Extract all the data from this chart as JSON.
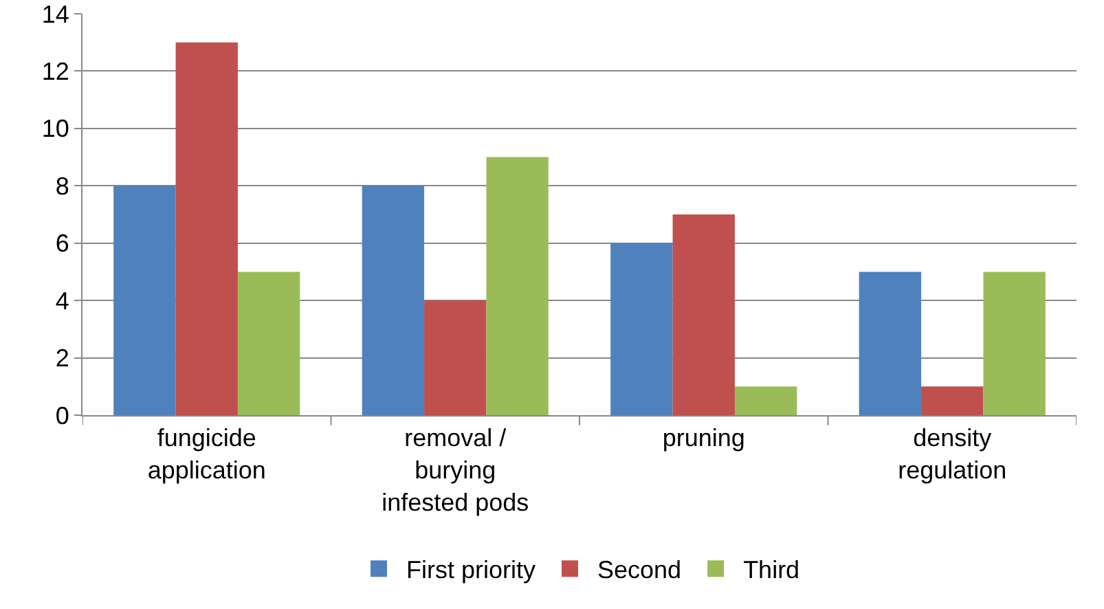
{
  "chart_data": {
    "type": "bar",
    "categories": [
      "fungicide application",
      "removal / burying infested pods",
      "pruning",
      "density regulation"
    ],
    "series": [
      {
        "name": "First priority",
        "color": "#4f81bd",
        "values": [
          8,
          8,
          6,
          5
        ]
      },
      {
        "name": "Second",
        "color": "#c0504d",
        "values": [
          13,
          4,
          7,
          1
        ]
      },
      {
        "name": "Third",
        "color": "#9bbb59",
        "values": [
          5,
          9,
          1,
          5
        ]
      }
    ],
    "ylim": [
      0,
      14
    ],
    "yticks": [
      0,
      2,
      4,
      6,
      8,
      10,
      12,
      14
    ],
    "grid": "y",
    "legend": "bottom"
  }
}
